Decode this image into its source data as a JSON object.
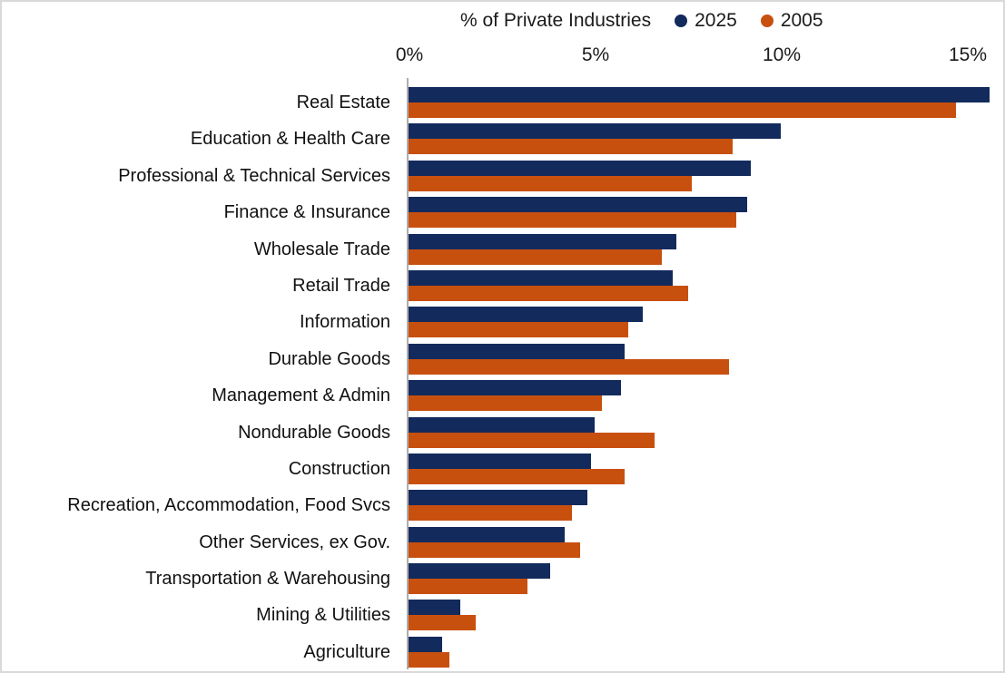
{
  "chart_data": {
    "type": "bar",
    "orientation": "horizontal",
    "title": "% of Private Industries",
    "legend_position": "top",
    "axis": {
      "unit": "%",
      "min": 0,
      "max": 16,
      "ticks": [
        0,
        5,
        10,
        15
      ],
      "tick_labels": [
        "0%",
        "5%",
        "10%",
        "15%"
      ],
      "grid": false
    },
    "categories": [
      "Real Estate",
      "Education & Health Care",
      "Professional & Technical Services",
      "Finance & Insurance",
      "Wholesale Trade",
      "Retail Trade",
      "Information",
      "Durable Goods",
      "Management & Admin",
      "Nondurable Goods",
      "Construction",
      "Recreation, Accommodation, Food Svcs",
      "Other Services, ex Gov.",
      "Transportation & Warehousing",
      "Mining  & Utilities",
      "Agriculture"
    ],
    "series": [
      {
        "name": "2025",
        "color": "#132a5c",
        "values": [
          15.6,
          10.0,
          9.2,
          9.1,
          7.2,
          7.1,
          6.3,
          5.8,
          5.7,
          5.0,
          4.9,
          4.8,
          4.2,
          3.8,
          1.4,
          0.9
        ]
      },
      {
        "name": "2005",
        "color": "#c8500f",
        "values": [
          14.7,
          8.7,
          7.6,
          8.8,
          6.8,
          7.5,
          5.9,
          8.6,
          5.2,
          6.6,
          5.8,
          4.4,
          4.6,
          3.2,
          1.8,
          1.1
        ]
      }
    ],
    "colors": {
      "axis_line": "#adadad",
      "text": "#1a1a1a"
    }
  }
}
